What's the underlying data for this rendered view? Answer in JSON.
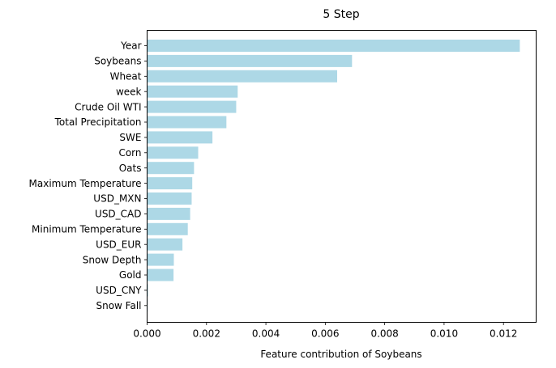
{
  "chart_data": {
    "type": "bar",
    "orientation": "horizontal",
    "title": "5 Step",
    "xlabel": "Feature contribution of Soybeans",
    "ylabel": "",
    "xlim": [
      0,
      0.0131
    ],
    "xticks": [
      0,
      0.002,
      0.004,
      0.006,
      0.008,
      0.01,
      0.012
    ],
    "xtick_labels": [
      "0.000",
      "0.002",
      "0.004",
      "0.006",
      "0.008",
      "0.010",
      "0.012"
    ],
    "grid": false,
    "bar_color": "#add8e6",
    "categories": [
      "Year",
      "Soybeans",
      "Wheat",
      "week",
      "Crude Oil WTI",
      "Total Precipitation",
      "SWE",
      "Corn",
      "Oats",
      "Maximum Temperature",
      "USD_MXN",
      "USD_CAD",
      "Minimum Temperature",
      "USD_EUR",
      "Snow Depth",
      "Gold",
      "USD_CNY",
      "Snow Fall"
    ],
    "values": [
      0.01255,
      0.0069,
      0.0064,
      0.00305,
      0.003,
      0.00267,
      0.0022,
      0.00172,
      0.00158,
      0.00152,
      0.0015,
      0.00145,
      0.00137,
      0.00119,
      0.0009,
      0.00089,
      3e-05,
      2e-05
    ]
  }
}
